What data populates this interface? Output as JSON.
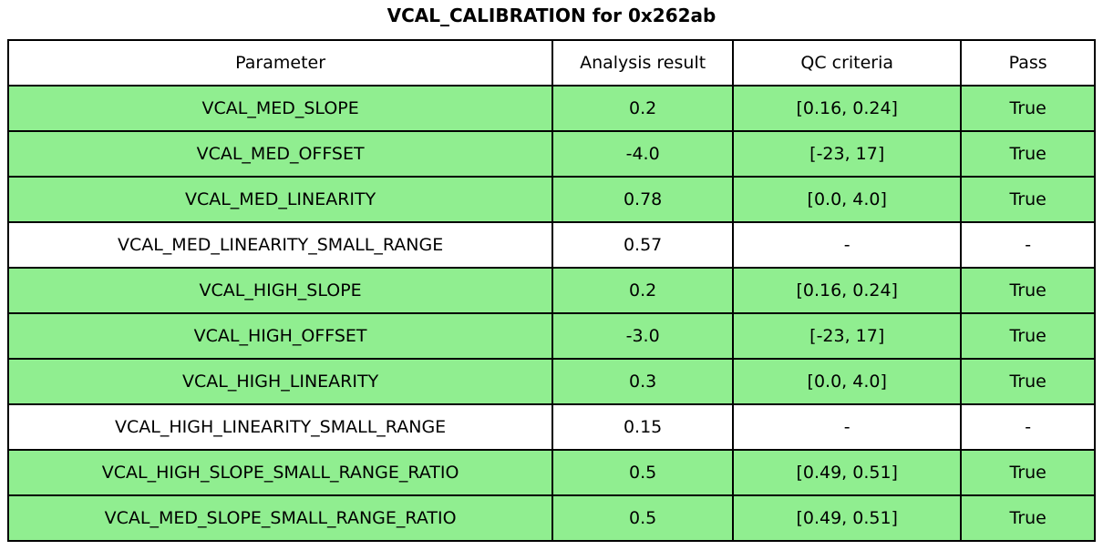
{
  "chart_data": {
    "type": "table",
    "title": "VCAL_CALIBRATION for 0x262ab",
    "columns": [
      "Parameter",
      "Analysis result",
      "QC criteria",
      "Pass"
    ],
    "rows": [
      {
        "parameter": "VCAL_MED_SLOPE",
        "result": "0.2",
        "criteria": "[0.16, 0.24]",
        "pass": "True",
        "highlighted": true
      },
      {
        "parameter": "VCAL_MED_OFFSET",
        "result": "-4.0",
        "criteria": "[-23, 17]",
        "pass": "True",
        "highlighted": true
      },
      {
        "parameter": "VCAL_MED_LINEARITY",
        "result": "0.78",
        "criteria": "[0.0, 4.0]",
        "pass": "True",
        "highlighted": true
      },
      {
        "parameter": "VCAL_MED_LINEARITY_SMALL_RANGE",
        "result": "0.57",
        "criteria": "-",
        "pass": "-",
        "highlighted": false
      },
      {
        "parameter": "VCAL_HIGH_SLOPE",
        "result": "0.2",
        "criteria": "[0.16, 0.24]",
        "pass": "True",
        "highlighted": true
      },
      {
        "parameter": "VCAL_HIGH_OFFSET",
        "result": "-3.0",
        "criteria": "[-23, 17]",
        "pass": "True",
        "highlighted": true
      },
      {
        "parameter": "VCAL_HIGH_LINEARITY",
        "result": "0.3",
        "criteria": "[0.0, 4.0]",
        "pass": "True",
        "highlighted": true
      },
      {
        "parameter": "VCAL_HIGH_LINEARITY_SMALL_RANGE",
        "result": "0.15",
        "criteria": "-",
        "pass": "-",
        "highlighted": false
      },
      {
        "parameter": "VCAL_HIGH_SLOPE_SMALL_RANGE_RATIO",
        "result": "0.5",
        "criteria": "[0.49, 0.51]",
        "pass": "True",
        "highlighted": true
      },
      {
        "parameter": "VCAL_MED_SLOPE_SMALL_RANGE_RATIO",
        "result": "0.5",
        "criteria": "[0.49, 0.51]",
        "pass": "True",
        "highlighted": true
      }
    ],
    "layout": {
      "legend": "none",
      "grid": "table-borders"
    }
  },
  "colors": {
    "highlight_green": "#90EE90",
    "row_default": "#FFFFFF",
    "border": "#000000",
    "text": "#000000",
    "background": "#FFFFFF"
  }
}
